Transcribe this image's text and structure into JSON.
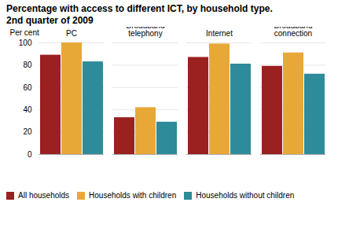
{
  "chart_data": {
    "type": "bar",
    "title": "Percentage with access to different ICT, by household type.",
    "subtitle": "2nd quarter of 2009",
    "ylabel": "Per cent",
    "categories": [
      "PC",
      "Broadband telephony",
      "Internet",
      "Broadband connection"
    ],
    "series": [
      {
        "name": "All households",
        "color": "#9B2020",
        "values": [
          89,
          33,
          87,
          79
        ]
      },
      {
        "name": "Households with children",
        "color": "#E8A838",
        "values": [
          100,
          42,
          99,
          91
        ]
      },
      {
        "name": "Households without children",
        "color": "#2E8B9A",
        "values": [
          83,
          29,
          81,
          72
        ]
      }
    ],
    "ylim": [
      0,
      100
    ],
    "yticks": [
      0,
      20,
      40,
      60,
      80,
      100
    ],
    "grid": true,
    "legend": "bottom"
  }
}
